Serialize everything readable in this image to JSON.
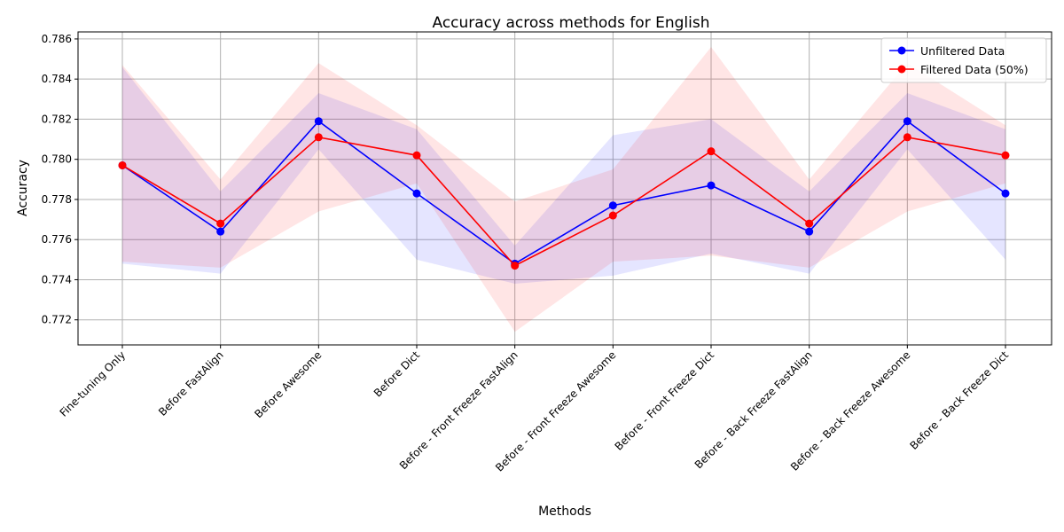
{
  "chart_data": {
    "type": "line",
    "title": "Accuracy across methods for English",
    "xlabel": "Methods",
    "ylabel": "Accuracy",
    "categories": [
      "Fine-tuning Only",
      "Before FastAlign",
      "Before Awesome",
      "Before Dict",
      "Before - Front Freeze FastAlign",
      "Before - Front Freeze Awesome",
      "Before - Front Freeze Dict",
      "Before - Back Freeze FastAlign",
      "Before - Back Freeze Awesome",
      "Before - Back Freeze Dict"
    ],
    "ylim": [
      0.77075,
      0.78635
    ],
    "yticks": [
      "0.772",
      "0.774",
      "0.776",
      "0.778",
      "0.780",
      "0.782",
      "0.784",
      "0.786"
    ],
    "grid": true,
    "legend_position": "top-right",
    "series": [
      {
        "name": "Unfiltered Data",
        "color": "#0000ff",
        "values": [
          0.7797,
          0.7764,
          0.7819,
          0.7783,
          0.7748,
          0.7777,
          0.7787,
          0.7764,
          0.7819,
          0.7783
        ],
        "lower": [
          0.7748,
          0.7743,
          0.7805,
          0.775,
          0.7738,
          0.7742,
          0.7753,
          0.7743,
          0.7805,
          0.775
        ],
        "upper": [
          0.7846,
          0.7784,
          0.7833,
          0.7815,
          0.7757,
          0.7812,
          0.782,
          0.7784,
          0.7833,
          0.7815
        ]
      },
      {
        "name": "Filtered Data (50%)",
        "color": "#ff0000",
        "values": [
          0.7797,
          0.7768,
          0.7811,
          0.7802,
          0.7747,
          0.7772,
          0.7804,
          0.7768,
          0.7811,
          0.7802
        ],
        "lower": [
          0.7749,
          0.7746,
          0.7774,
          0.7788,
          0.7714,
          0.7749,
          0.7752,
          0.7746,
          0.7774,
          0.7788
        ],
        "upper": [
          0.7847,
          0.779,
          0.7848,
          0.7817,
          0.7779,
          0.7795,
          0.7856,
          0.779,
          0.7848,
          0.7817
        ]
      }
    ]
  }
}
